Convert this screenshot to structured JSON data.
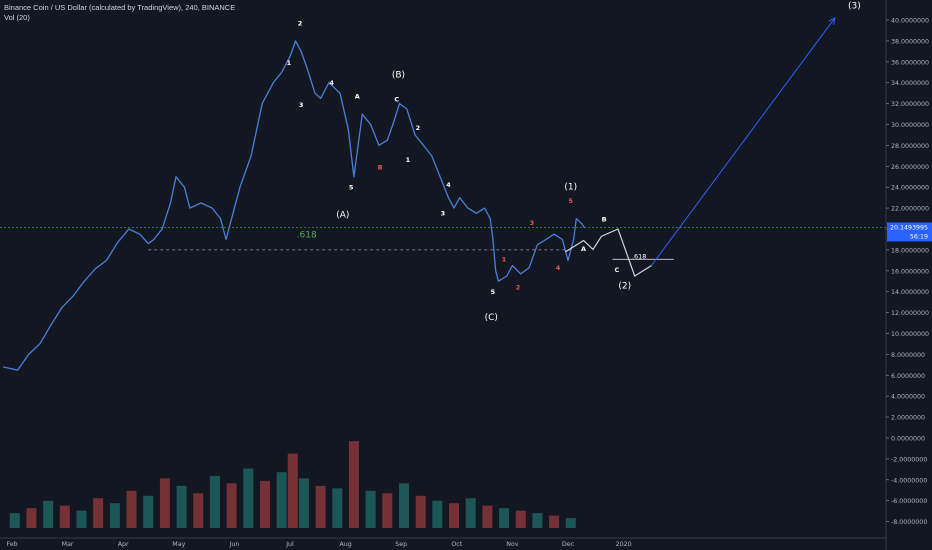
{
  "header": {
    "title": "Binance Coin / US Dollar (calculated by TradingView), 240, BINANCE",
    "indicator": "Vol (20)"
  },
  "colors": {
    "background": "#131722",
    "price_line": "#4a7fd8",
    "current_price_badge": "#2962ff",
    "wave_label_white": "#ffffff",
    "wave_label_red": "#ef5350",
    "fib_label": "#4caf50",
    "volume_up": "#26a69a",
    "volume_down": "#ef5350",
    "axis_text": "#b2b5be",
    "projection": "#d1d4dc",
    "target_arrow": "#2962ff"
  },
  "chart_data": {
    "type": "line",
    "title": "Binance Coin / US Dollar (calculated by TradingView), 240, BINANCE",
    "xlabel": "",
    "ylabel": "",
    "ylim": [
      -9,
      41
    ],
    "y_ticks": [
      "40.0000000",
      "38.0000000",
      "36.0000000",
      "34.0000000",
      "32.0000000",
      "30.0000000",
      "28.0000000",
      "26.0000000",
      "24.0000000",
      "22.0000000",
      "20.0000000",
      "18.0000000",
      "16.0000000",
      "14.0000000",
      "12.0000000",
      "10.0000000",
      "8.0000000",
      "6.0000000",
      "4.0000000",
      "2.0000000",
      "0.0000000",
      "-2.0000000",
      "-4.0000000",
      "-6.0000000",
      "-8.0000000"
    ],
    "y_tick_values": [
      40,
      38,
      36,
      34,
      32,
      30,
      28,
      26,
      24,
      22,
      20,
      18,
      16,
      14,
      12,
      10,
      8,
      6,
      4,
      2,
      0,
      -2,
      -4,
      -6,
      -8
    ],
    "x_ticks": [
      {
        "label": "Feb",
        "month": 0
      },
      {
        "label": "Mar",
        "month": 1
      },
      {
        "label": "Apr",
        "month": 2
      },
      {
        "label": "May",
        "month": 3
      },
      {
        "label": "Jun",
        "month": 4
      },
      {
        "label": "Jul",
        "month": 5
      },
      {
        "label": "Aug",
        "month": 6
      },
      {
        "label": "Sep",
        "month": 7
      },
      {
        "label": "Oct",
        "month": 8
      },
      {
        "label": "Nov",
        "month": 9
      },
      {
        "label": "Dec",
        "month": 10
      },
      {
        "label": "2020",
        "month": 11
      }
    ],
    "current_price": {
      "label": "20.1493995",
      "value": 20.15,
      "countdown": "56:19"
    },
    "series": [
      {
        "values": [
          [
            -0.16,
            6.8
          ],
          [
            0.1,
            6.5
          ],
          [
            0.3,
            8
          ],
          [
            0.5,
            9
          ],
          [
            0.7,
            10.8
          ],
          [
            0.9,
            12.5
          ],
          [
            1.1,
            13.6
          ],
          [
            1.3,
            15
          ],
          [
            1.5,
            16.2
          ],
          [
            1.7,
            17
          ],
          [
            1.9,
            18.7
          ],
          [
            2.1,
            20
          ],
          [
            2.3,
            19.5
          ],
          [
            2.45,
            18.6
          ],
          [
            2.55,
            19
          ],
          [
            2.7,
            20
          ],
          [
            2.85,
            22.5
          ],
          [
            2.95,
            25
          ],
          [
            3.1,
            24
          ],
          [
            3.2,
            22
          ],
          [
            3.4,
            22.5
          ],
          [
            3.6,
            22
          ],
          [
            3.75,
            21
          ],
          [
            3.85,
            19
          ],
          [
            3.95,
            21
          ],
          [
            4.1,
            24
          ],
          [
            4.3,
            27
          ],
          [
            4.5,
            32
          ],
          [
            4.7,
            34
          ],
          [
            4.85,
            35
          ],
          [
            5.0,
            36.5
          ],
          [
            5.1,
            38
          ],
          [
            5.2,
            37
          ],
          [
            5.3,
            35.5
          ],
          [
            5.45,
            33
          ],
          [
            5.55,
            32.5
          ],
          [
            5.7,
            34
          ],
          [
            5.9,
            33
          ],
          [
            6.05,
            29.5
          ],
          [
            6.15,
            25
          ],
          [
            6.3,
            31
          ],
          [
            6.45,
            30
          ],
          [
            6.6,
            28
          ],
          [
            6.75,
            28.5
          ],
          [
            6.85,
            30
          ],
          [
            6.97,
            32
          ],
          [
            7.1,
            31.5
          ],
          [
            7.25,
            29
          ],
          [
            7.4,
            28
          ],
          [
            7.55,
            27
          ],
          [
            7.7,
            25
          ],
          [
            7.85,
            23
          ],
          [
            7.95,
            22
          ],
          [
            8.05,
            23
          ],
          [
            8.2,
            22
          ],
          [
            8.35,
            21.5
          ],
          [
            8.5,
            22
          ],
          [
            8.6,
            21
          ],
          [
            8.65,
            19
          ],
          [
            8.7,
            16
          ],
          [
            8.75,
            15
          ],
          [
            8.9,
            15.5
          ],
          [
            9.0,
            16.5
          ],
          [
            9.15,
            15.7
          ],
          [
            9.3,
            16.3
          ],
          [
            9.45,
            18.5
          ],
          [
            9.6,
            19
          ],
          [
            9.75,
            19.5
          ],
          [
            9.9,
            19
          ],
          [
            10.0,
            17
          ],
          [
            10.1,
            19
          ],
          [
            10.15,
            21
          ],
          [
            10.25,
            20.5
          ],
          [
            10.3,
            20.1
          ]
        ]
      }
    ],
    "volume_ylim": [
      0,
      100
    ],
    "volume": [
      [
        0.05,
        12,
        1
      ],
      [
        0.35,
        16,
        0
      ],
      [
        0.65,
        22,
        1
      ],
      [
        0.95,
        18,
        0
      ],
      [
        1.25,
        14,
        1
      ],
      [
        1.55,
        24,
        0
      ],
      [
        1.85,
        20,
        1
      ],
      [
        2.15,
        30,
        0
      ],
      [
        2.45,
        26,
        1
      ],
      [
        2.75,
        40,
        0
      ],
      [
        3.05,
        34,
        1
      ],
      [
        3.35,
        28,
        0
      ],
      [
        3.65,
        42,
        1
      ],
      [
        3.95,
        36,
        0
      ],
      [
        4.25,
        48,
        1
      ],
      [
        4.55,
        38,
        0
      ],
      [
        4.85,
        45,
        1
      ],
      [
        5.05,
        60,
        0
      ],
      [
        5.25,
        40,
        1
      ],
      [
        5.55,
        34,
        0
      ],
      [
        5.85,
        32,
        1
      ],
      [
        6.15,
        70,
        0
      ],
      [
        6.45,
        30,
        1
      ],
      [
        6.75,
        28,
        0
      ],
      [
        7.05,
        36,
        1
      ],
      [
        7.35,
        26,
        0
      ],
      [
        7.65,
        22,
        1
      ],
      [
        7.95,
        20,
        0
      ],
      [
        8.25,
        24,
        1
      ],
      [
        8.55,
        18,
        0
      ],
      [
        8.85,
        16,
        1
      ],
      [
        9.15,
        14,
        0
      ],
      [
        9.45,
        12,
        1
      ],
      [
        9.75,
        10,
        0
      ],
      [
        10.05,
        8,
        1
      ]
    ],
    "volume_max": 100,
    "projection_path": [
      [
        9.95,
        17.8
      ],
      [
        10.28,
        18.9
      ],
      [
        10.45,
        18.05
      ],
      [
        10.6,
        19.3
      ],
      [
        10.9,
        20
      ],
      [
        11.2,
        15.5
      ],
      [
        11.5,
        16.5
      ]
    ],
    "projection_target": [
      14.8,
      40.2
    ],
    "fib_lines": [
      {
        "label": ".618",
        "from": [
          2.45,
          18.0
        ],
        "to": [
          10.1,
          18.0
        ],
        "label_at": [
          5.3,
          19.2
        ],
        "dashed": true
      },
      {
        "label": ".618",
        "from": [
          10.8,
          17.1
        ],
        "to": [
          11.9,
          17.1
        ],
        "label_at": [
          11.15,
          17.2
        ],
        "dashed": false
      }
    ],
    "wave_labels": [
      {
        "text": "2",
        "at": [
          5.18,
          39.5
        ],
        "color": "white",
        "size": "small"
      },
      {
        "text": "1",
        "at": [
          4.98,
          35.7
        ],
        "color": "white",
        "size": "small"
      },
      {
        "text": "3",
        "at": [
          5.2,
          31.7
        ],
        "color": "white",
        "size": "small"
      },
      {
        "text": "4",
        "at": [
          5.75,
          33.8
        ],
        "color": "white",
        "size": "small"
      },
      {
        "text": "5",
        "at": [
          6.1,
          23.8
        ],
        "color": "white",
        "size": "small"
      },
      {
        "text": "(A)",
        "at": [
          5.95,
          21.1
        ],
        "color": "white",
        "size": "big"
      },
      {
        "text": "A",
        "at": [
          6.21,
          32.5
        ],
        "color": "white",
        "size": "small"
      },
      {
        "text": "B",
        "at": [
          6.62,
          25.7
        ],
        "color": "red",
        "size": "small"
      },
      {
        "text": "(B)",
        "at": [
          6.95,
          34.5
        ],
        "color": "white",
        "size": "big"
      },
      {
        "text": "C",
        "at": [
          6.92,
          32.2
        ],
        "color": "white",
        "size": "small"
      },
      {
        "text": "2",
        "at": [
          7.3,
          29.5
        ],
        "color": "white",
        "size": "small"
      },
      {
        "text": "1",
        "at": [
          7.12,
          26.4
        ],
        "color": "white",
        "size": "small"
      },
      {
        "text": "4",
        "at": [
          7.85,
          24.0
        ],
        "color": "white",
        "size": "small"
      },
      {
        "text": "3",
        "at": [
          7.75,
          21.3
        ],
        "color": "white",
        "size": "small"
      },
      {
        "text": "5",
        "at": [
          8.65,
          13.8
        ],
        "color": "white",
        "size": "small"
      },
      {
        "text": "(C)",
        "at": [
          8.62,
          11.3
        ],
        "color": "white",
        "size": "big"
      },
      {
        "text": "1",
        "at": [
          8.85,
          16.9
        ],
        "color": "red",
        "size": "small"
      },
      {
        "text": "2",
        "at": [
          9.1,
          14.2
        ],
        "color": "red",
        "size": "small"
      },
      {
        "text": "3",
        "at": [
          9.35,
          20.4
        ],
        "color": "red",
        "size": "small"
      },
      {
        "text": "4",
        "at": [
          9.82,
          16.1
        ],
        "color": "red",
        "size": "small"
      },
      {
        "text": "5",
        "at": [
          10.05,
          22.5
        ],
        "color": "red",
        "size": "small"
      },
      {
        "text": "(1)",
        "at": [
          10.05,
          23.8
        ],
        "color": "white",
        "size": "big"
      },
      {
        "text": "A",
        "at": [
          10.28,
          17.9
        ],
        "color": "white",
        "size": "small"
      },
      {
        "text": "B",
        "at": [
          10.65,
          20.7
        ],
        "color": "white",
        "size": "small"
      },
      {
        "text": "C",
        "at": [
          10.88,
          15.9
        ],
        "color": "white",
        "size": "small"
      },
      {
        "text": "(2)",
        "at": [
          11.02,
          14.3
        ],
        "color": "white",
        "size": "big"
      },
      {
        "text": "(3)",
        "at": [
          15.15,
          41.1
        ],
        "color": "white",
        "size": "big"
      }
    ]
  }
}
